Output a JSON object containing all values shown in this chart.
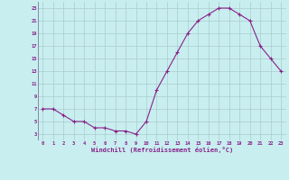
{
  "x": [
    0,
    1,
    2,
    3,
    4,
    5,
    6,
    7,
    8,
    9,
    10,
    11,
    12,
    13,
    14,
    15,
    16,
    17,
    18,
    19,
    20,
    21,
    22,
    23
  ],
  "y": [
    7,
    7,
    6,
    5,
    5,
    4,
    4,
    3.5,
    3.5,
    3,
    5,
    10,
    13,
    16,
    19,
    21,
    22,
    23,
    23,
    22,
    21,
    17,
    15,
    13
  ],
  "line_color": "#882288",
  "marker_color": "#882288",
  "bg_color": "#c8eef0",
  "grid_color": "#aacccc",
  "xlabel": "Windchill (Refroidissement éolien,°C)",
  "xlabel_color": "#882288",
  "ylim": [
    2,
    24
  ],
  "xlim": [
    -0.5,
    23.5
  ],
  "yticks": [
    3,
    5,
    7,
    9,
    11,
    13,
    15,
    17,
    19,
    21,
    23
  ],
  "xticks": [
    0,
    1,
    2,
    3,
    4,
    5,
    6,
    7,
    8,
    9,
    10,
    11,
    12,
    13,
    14,
    15,
    16,
    17,
    18,
    19,
    20,
    21,
    22,
    23
  ],
  "tick_color": "#882288",
  "title": ""
}
